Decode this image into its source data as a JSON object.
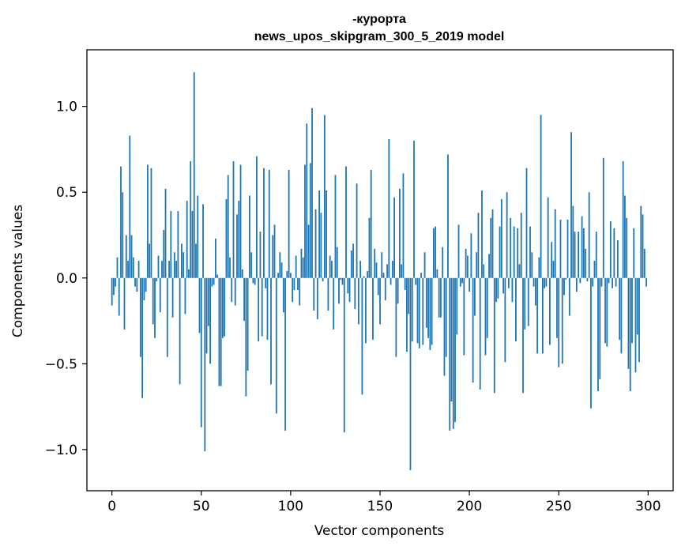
{
  "chart_data": {
    "type": "bar",
    "title": "-курорта",
    "subtitle": "news_upos_skipgram_300_5_2019 model",
    "xlabel": "Vector components",
    "ylabel": "Components values",
    "xlim": [
      -14,
      314
    ],
    "ylim": [
      -1.24,
      1.33
    ],
    "xticks": [
      0,
      50,
      100,
      150,
      200,
      250,
      300
    ],
    "yticks": [
      -1.0,
      -0.5,
      0.0,
      0.5,
      1.0
    ],
    "xtick_labels": [
      "0",
      "50",
      "100",
      "150",
      "200",
      "250",
      "300"
    ],
    "ytick_labels": [
      "−1.0",
      "−0.5",
      "0.0",
      "0.5",
      "1.0"
    ],
    "bar_color": "#1f77b4",
    "grid": false,
    "values": [
      -0.16,
      -0.1,
      -0.05,
      0.12,
      -0.22,
      0.65,
      0.5,
      -0.3,
      0.25,
      0.1,
      0.83,
      0.25,
      0.12,
      -0.05,
      -0.08,
      0.1,
      -0.46,
      -0.7,
      -0.13,
      -0.08,
      0.66,
      0.2,
      0.64,
      -0.27,
      -0.35,
      -0.02,
      0.13,
      -0.2,
      0.1,
      0.28,
      0.52,
      -0.46,
      0.1,
      0.39,
      -0.23,
      0.15,
      0.1,
      0.39,
      -0.62,
      0.2,
      0.15,
      -0.21,
      0.45,
      0.05,
      0.68,
      0.39,
      1.2,
      0.2,
      0.48,
      -0.32,
      -0.87,
      0.43,
      -1.01,
      -0.44,
      -0.28,
      -0.5,
      -0.05,
      -0.04,
      0.23,
      0.02,
      -0.63,
      -0.63,
      -0.35,
      -0.34,
      0.46,
      0.6,
      0.12,
      -0.14,
      0.68,
      -0.16,
      0.37,
      0.45,
      0.66,
      0.05,
      -0.25,
      -0.69,
      -0.54,
      0.48,
      0.15,
      -0.03,
      -0.04,
      0.71,
      -0.37,
      0.27,
      -0.34,
      0.64,
      -0.06,
      -0.36,
      0.63,
      -0.62,
      0.25,
      0.31,
      -0.79,
      0.03,
      0.15,
      0.09,
      -0.2,
      -0.89,
      0.04,
      0.63,
      0.03,
      -0.14,
      -0.07,
      0.13,
      -0.07,
      -0.16,
      0.17,
      0.12,
      0.66,
      0.9,
      0.31,
      0.67,
      0.99,
      -0.19,
      0.4,
      -0.24,
      0.51,
      0.38,
      -0.02,
      0.95,
      0.51,
      -0.19,
      0.13,
      0.1,
      -0.3,
      0.6,
      0.18,
      -0.15,
      -0.01,
      -0.04,
      -0.9,
      0.65,
      -0.09,
      -0.14,
      0.16,
      0.2,
      -0.18,
      0.55,
      -0.27,
      0.1,
      -0.68,
      0.01,
      -0.38,
      0.04,
      0.35,
      0.63,
      -0.36,
      0.17,
      0.09,
      -0.1,
      -0.27,
      0.15,
      0.03,
      -0.13,
      0.08,
      0.81,
      -0.04,
      0.1,
      0.47,
      -0.46,
      -0.15,
      0.52,
      0.08,
      0.61,
      -0.07,
      -0.43,
      -0.21,
      -1.12,
      -0.37,
      0.8,
      -0.04,
      -0.38,
      -0.41,
      0.03,
      -0.39,
      0.15,
      -0.29,
      -0.35,
      -0.42,
      -0.39,
      0.29,
      0.3,
      0.05,
      -0.23,
      -0.23,
      0.18,
      -0.57,
      -0.46,
      0.72,
      -0.89,
      -0.72,
      -0.88,
      -0.84,
      -0.33,
      0.31,
      -0.05,
      -0.03,
      -0.45,
      0.17,
      0.13,
      -0.08,
      0.26,
      -0.61,
      -0.22,
      0.15,
      0.38,
      -0.65,
      0.51,
      0.08,
      -0.45,
      -0.35,
      0.14,
      0.35,
      0.4,
      -0.67,
      -0.14,
      -0.12,
      0.3,
      0.46,
      -0.09,
      -0.49,
      0.5,
      -0.06,
      0.35,
      -0.14,
      0.3,
      -0.37,
      0.29,
      0.08,
      0.38,
      -0.67,
      -0.3,
      0.64,
      -0.28,
      0.3,
      0.15,
      -0.05,
      -0.16,
      -0.44,
      0.12,
      0.95,
      -0.44,
      -0.06,
      -0.05,
      0.47,
      -0.39,
      0.21,
      0.1,
      0.4,
      -0.35,
      -0.52,
      0.34,
      -0.5,
      -0.1,
      -0.01,
      0.34,
      -0.22,
      0.85,
      0.42,
      0.27,
      -0.08,
      0.27,
      -0.03,
      0.36,
      0.29,
      0.17,
      -0.02,
      0.5,
      -0.76,
      -0.05,
      0.1,
      0.27,
      -0.66,
      -0.59,
      -0.05,
      0.7,
      -0.38,
      -0.4,
      -0.03,
      0.33,
      -0.06,
      0.29,
      -0.05,
      0.22,
      -0.36,
      -0.44,
      0.68,
      0.48,
      0.35,
      -0.53,
      -0.66,
      -0.38,
      0.29,
      -0.55,
      -0.33,
      -0.49,
      0.42,
      0.37,
      0.17,
      -0.05
    ]
  }
}
